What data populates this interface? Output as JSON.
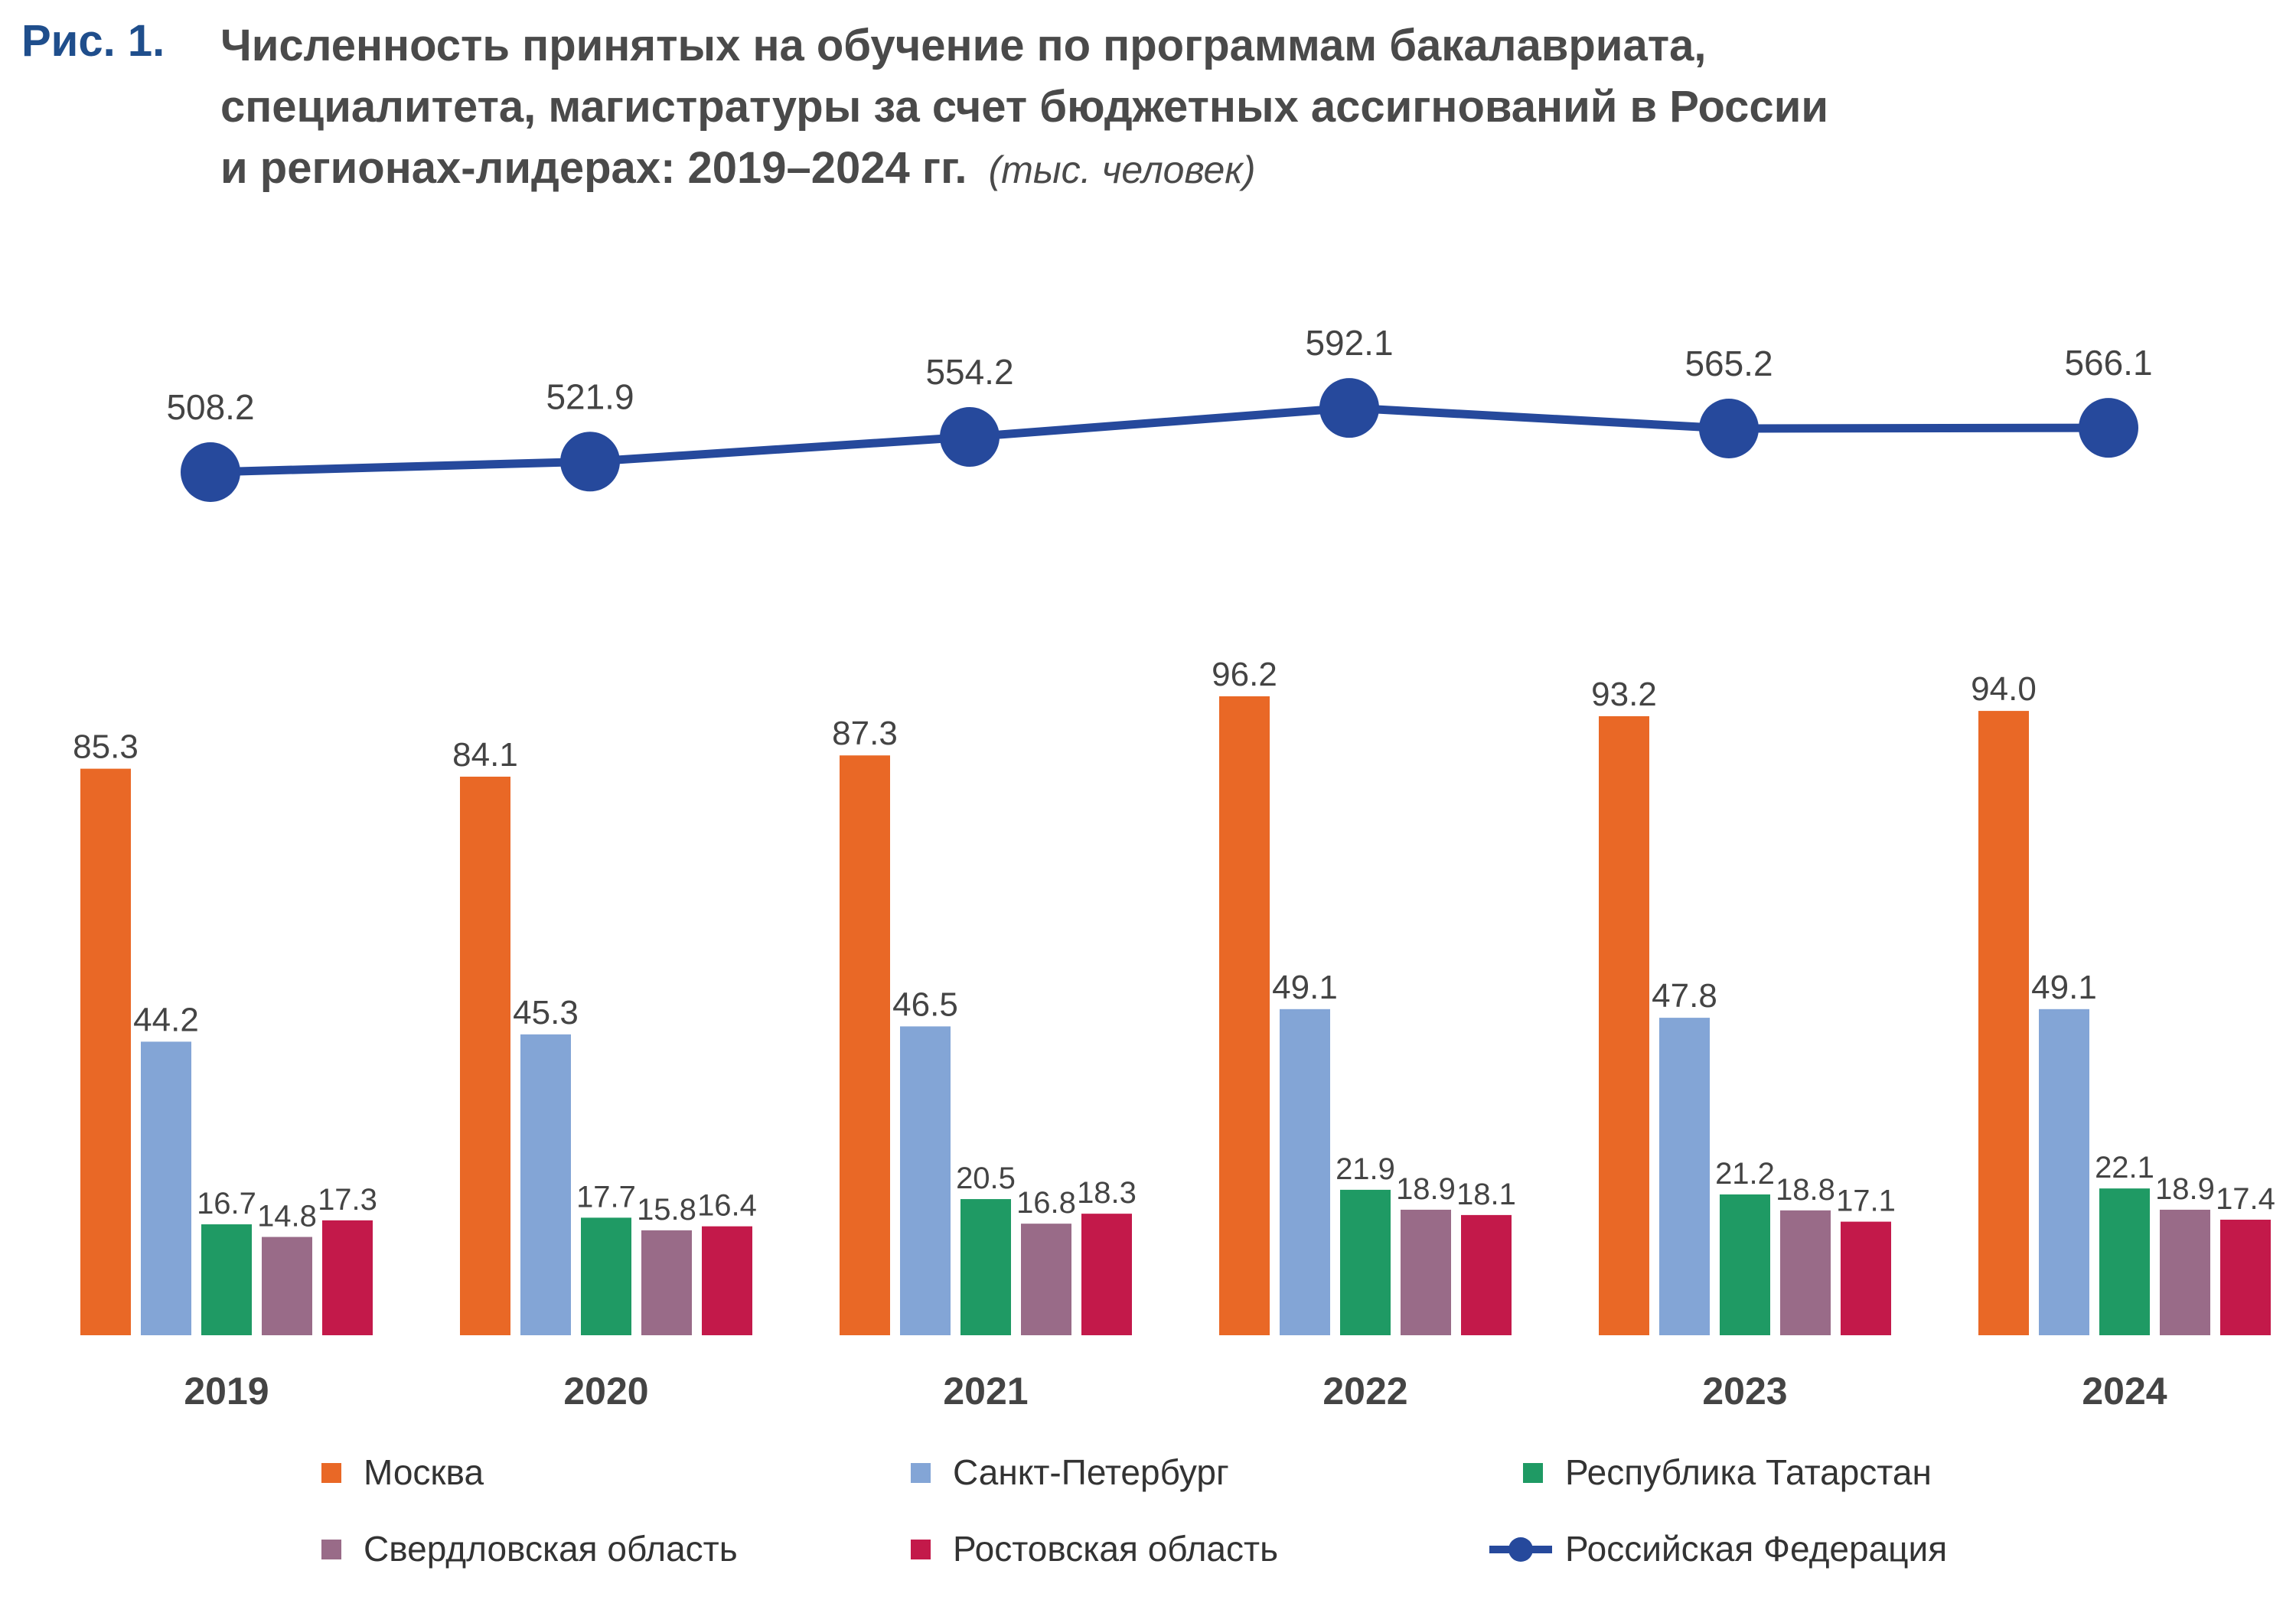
{
  "header": {
    "figure_number": "Рис. 1.",
    "title_line1": "Численность принятых на обучение по программам бакалавриата,",
    "title_line2": "специалитета, магистратуры за счет бюджетных ассигнований в России",
    "title_line3": "и регионах-лидерах: 2019–2024 гг.",
    "units": "(тыс. человек)"
  },
  "chart_data": {
    "type": "bar",
    "categories": [
      "2019",
      "2020",
      "2021",
      "2022",
      "2023",
      "2024"
    ],
    "series": [
      {
        "name": "Москва",
        "color": "#e96826",
        "values": [
          85.3,
          84.1,
          87.3,
          96.2,
          93.2,
          94.0
        ],
        "labels": [
          "85.3",
          "84.1",
          "87.3",
          "96.2",
          "93.2",
          "94.0"
        ]
      },
      {
        "name": "Санкт-Петербург",
        "color": "#83a5d6",
        "values": [
          44.2,
          45.3,
          46.5,
          49.1,
          47.8,
          49.1
        ],
        "labels": [
          "44.2",
          "45.3",
          "46.5",
          "49.1",
          "47.8",
          "49.1"
        ]
      },
      {
        "name": "Республика Татарстан",
        "color": "#1f9a64",
        "values": [
          16.7,
          17.7,
          20.5,
          21.9,
          21.2,
          22.1
        ],
        "labels": [
          "16.7",
          "17.7",
          "20.5",
          "21.9",
          "21.2",
          "22.1"
        ]
      },
      {
        "name": "Свердловская область",
        "color": "#996b88",
        "values": [
          14.8,
          15.8,
          16.8,
          18.9,
          18.8,
          18.9
        ],
        "labels": [
          "14.8",
          "15.8",
          "16.8",
          "18.9",
          "18.8",
          "18.9"
        ]
      },
      {
        "name": "Ростовская область",
        "color": "#c3194a",
        "values": [
          17.3,
          16.4,
          18.3,
          18.1,
          17.1,
          17.4
        ],
        "labels": [
          "17.3",
          "16.4",
          "18.3",
          "18.1",
          "17.1",
          "17.4"
        ]
      }
    ],
    "line_series": {
      "name": "Российская Федерация",
      "type": "line",
      "color": "#26499c",
      "values": [
        508.2,
        521.9,
        554.2,
        592.1,
        565.2,
        566.1
      ],
      "labels": [
        "508.2",
        "521.9",
        "554.2",
        "592.1",
        "565.2",
        "566.1"
      ]
    },
    "grid": false,
    "legend_position": "bottom"
  }
}
